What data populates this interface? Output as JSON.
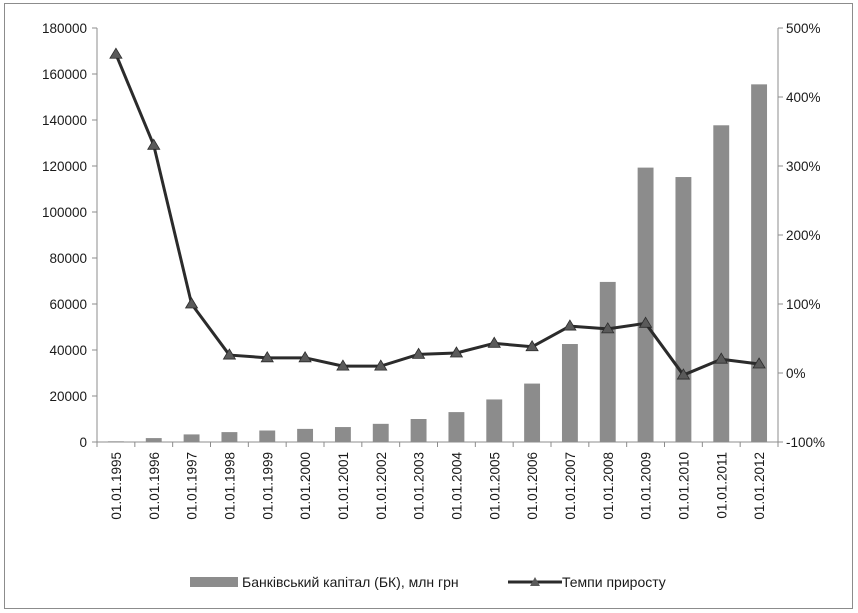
{
  "chart_data": {
    "type": "bar+line",
    "categories": [
      "01.01.1995",
      "01.01.1996",
      "01.01.1997",
      "01.01.1998",
      "01.01.1999",
      "01.01.2000",
      "01.01.2001",
      "01.01.2002",
      "01.01.2003",
      "01.01.2004",
      "01.01.2005",
      "01.01.2006",
      "01.01.2007",
      "01.01.2008",
      "01.01.2009",
      "01.01.2010",
      "01.01.2011",
      "01.01.2012"
    ],
    "series": [
      {
        "name": "Банківський капітал (БК), млн грн",
        "kind": "bar",
        "axis": "left",
        "color": "#8c8c8c",
        "values": [
          300,
          1700,
          3300,
          4300,
          5000,
          5700,
          6500,
          7900,
          10000,
          13000,
          18500,
          25400,
          42600,
          69600,
          119300,
          115200,
          137700,
          155500
        ]
      },
      {
        "name": "Темпи приросту",
        "kind": "line",
        "axis": "right",
        "color": "#2b2b2b",
        "marker": "triangle",
        "values": [
          4.62,
          3.3,
          1.0,
          0.26,
          0.22,
          0.22,
          0.1,
          0.1,
          0.27,
          0.29,
          0.43,
          0.38,
          0.68,
          0.64,
          0.72,
          -0.03,
          0.2,
          0.13
        ]
      }
    ],
    "y_left": {
      "ylim": [
        0,
        180000
      ],
      "ticks": [
        0,
        20000,
        40000,
        60000,
        80000,
        100000,
        120000,
        140000,
        160000,
        180000
      ],
      "tick_labels": [
        "0",
        "20000",
        "40000",
        "60000",
        "80000",
        "100000",
        "120000",
        "140000",
        "160000",
        "180000"
      ]
    },
    "y_right": {
      "ylim": [
        -1,
        5
      ],
      "ticks": [
        -1,
        0,
        1,
        2,
        3,
        4,
        5
      ],
      "tick_labels": [
        "-100%",
        "0%",
        "100%",
        "200%",
        "300%",
        "400%",
        "500%"
      ]
    },
    "grid": false,
    "legend_position": "bottom"
  }
}
